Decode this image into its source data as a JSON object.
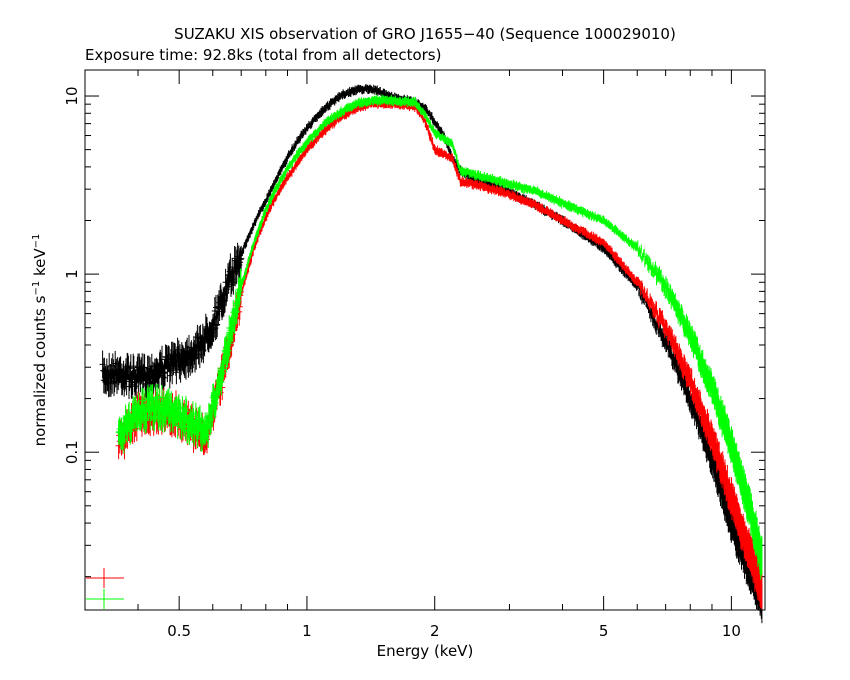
{
  "chart_data": {
    "type": "scatter",
    "title": "SUZAKU XIS observation of GRO J1655−40 (Sequence 100029010)",
    "subtitle": "Exposure time: 92.8ks (total from all detectors)",
    "xlabel": "Energy (keV)",
    "ylabel_main": "normalized counts s",
    "ylabel_sup1": "−1",
    "ylabel_mid": " keV",
    "ylabel_sup2": "−1",
    "x_scale": "log",
    "y_scale": "log",
    "xlim": [
      0.3,
      12
    ],
    "ylim": [
      0.013,
      14
    ],
    "x_ticks": [
      {
        "value": 0.5,
        "label": "0.5"
      },
      {
        "value": 1,
        "label": "1"
      },
      {
        "value": 2,
        "label": "2"
      },
      {
        "value": 5,
        "label": "5"
      },
      {
        "value": 10,
        "label": "10"
      }
    ],
    "y_ticks": [
      {
        "value": 0.1,
        "label": "0.1"
      },
      {
        "value": 1,
        "label": "1"
      },
      {
        "value": 10,
        "label": "10"
      }
    ],
    "grid": false,
    "series": [
      {
        "color": "#000000",
        "x": [
          0.33,
          0.36,
          0.4,
          0.45,
          0.5,
          0.55,
          0.58,
          0.62,
          0.66,
          0.7,
          0.75,
          0.8,
          0.85,
          0.9,
          0.95,
          1.0,
          1.1,
          1.2,
          1.3,
          1.4,
          1.5,
          1.6,
          1.7,
          1.8,
          1.9,
          2.0,
          2.1,
          2.2,
          2.3,
          2.5,
          3.0,
          3.5,
          4.0,
          5.0,
          6.0,
          7.0,
          8.0,
          9.0,
          10.0,
          11.0,
          11.8
        ],
        "y": [
          0.27,
          0.28,
          0.26,
          0.29,
          0.33,
          0.38,
          0.45,
          0.62,
          0.95,
          1.3,
          1.9,
          2.6,
          3.5,
          4.5,
          5.6,
          6.6,
          8.5,
          10.0,
          10.8,
          11.0,
          10.5,
          9.8,
          9.5,
          9.2,
          8.5,
          7.2,
          6.0,
          4.5,
          3.8,
          3.4,
          2.9,
          2.4,
          2.0,
          1.4,
          0.85,
          0.42,
          0.2,
          0.09,
          0.04,
          0.022,
          0.015
        ]
      },
      {
        "color": "#ff0000",
        "x": [
          0.36,
          0.4,
          0.45,
          0.5,
          0.55,
          0.58,
          0.62,
          0.66,
          0.7,
          0.75,
          0.8,
          0.85,
          0.9,
          0.95,
          1.0,
          1.1,
          1.2,
          1.3,
          1.4,
          1.5,
          1.6,
          1.7,
          1.8,
          1.9,
          2.0,
          2.1,
          2.2,
          2.3,
          2.5,
          3.0,
          3.5,
          4.0,
          5.0,
          6.0,
          7.0,
          8.0,
          9.0,
          10.0,
          11.0,
          11.8
        ],
        "y": [
          0.11,
          0.16,
          0.17,
          0.16,
          0.13,
          0.12,
          0.22,
          0.42,
          0.78,
          1.4,
          2.1,
          2.8,
          3.5,
          4.2,
          5.0,
          6.4,
          7.6,
          8.5,
          9.0,
          9.1,
          9.0,
          8.9,
          8.7,
          7.2,
          5.0,
          4.7,
          4.5,
          3.3,
          3.2,
          2.8,
          2.4,
          2.0,
          1.5,
          0.9,
          0.5,
          0.25,
          0.12,
          0.055,
          0.028,
          0.017
        ]
      },
      {
        "color": "#00ff00",
        "x": [
          0.36,
          0.4,
          0.45,
          0.5,
          0.55,
          0.58,
          0.62,
          0.66,
          0.7,
          0.75,
          0.8,
          0.85,
          0.9,
          0.95,
          1.0,
          1.1,
          1.2,
          1.3,
          1.4,
          1.5,
          1.6,
          1.7,
          1.8,
          1.9,
          2.0,
          2.1,
          2.2,
          2.3,
          2.5,
          3.0,
          3.5,
          4.0,
          5.0,
          6.0,
          7.0,
          8.0,
          9.0,
          10.0,
          11.0,
          11.8
        ],
        "y": [
          0.12,
          0.17,
          0.18,
          0.16,
          0.14,
          0.13,
          0.24,
          0.46,
          0.85,
          1.5,
          2.3,
          3.1,
          3.9,
          4.7,
          5.5,
          7.0,
          8.1,
          9.0,
          9.4,
          9.5,
          9.4,
          9.3,
          9.2,
          7.8,
          6.2,
          5.8,
          5.4,
          3.8,
          3.6,
          3.2,
          2.9,
          2.5,
          2.0,
          1.4,
          0.85,
          0.45,
          0.23,
          0.11,
          0.05,
          0.025
        ]
      }
    ],
    "legend_markers": [
      {
        "color": "#ff0000"
      },
      {
        "color": "#00ff00"
      }
    ]
  }
}
